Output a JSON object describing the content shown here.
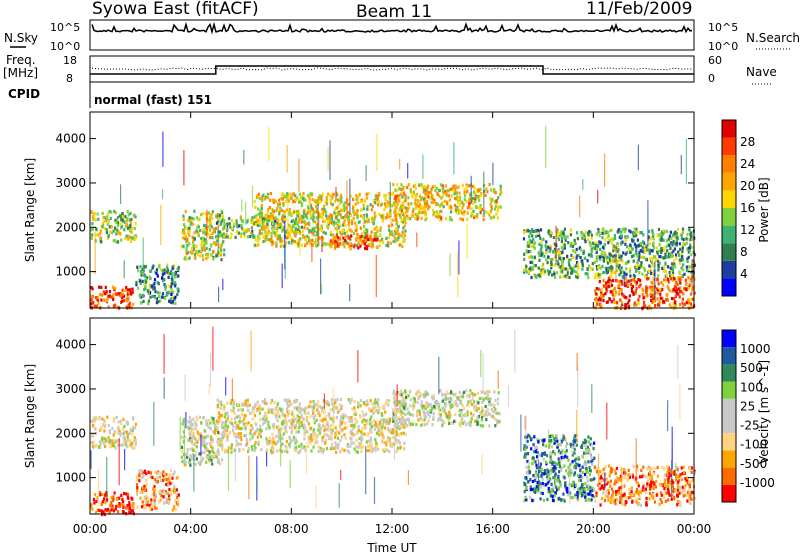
{
  "header": {
    "station": "Syowa East (fitACF)",
    "beam": "Beam 11",
    "date": "11/Feb/2009"
  },
  "strip_labels": {
    "nsky": "N.Sky",
    "nsky_top": "10^5",
    "nsky_bottom": "10^0",
    "nsearch": "N.Search",
    "nsearch_top": "10^5",
    "nsearch_bottom": "10^0",
    "freq": "Freq.",
    "freq_unit": "[MHz]",
    "freq_top": "18",
    "freq_bottom": "8",
    "nave": "Nave",
    "nave_top": "60",
    "nave_bottom": "0",
    "cpid": "CPID",
    "cpid_value": "normal (fast) 151"
  },
  "colors": {
    "power_scale": [
      "#0000ff",
      "#1e3fa0",
      "#2f7f4f",
      "#3cb371",
      "#7fd23c",
      "#ffd700",
      "#ffa500",
      "#ff7f00",
      "#ff3b00",
      "#e00000"
    ],
    "velocity_scale": [
      "#ff0000",
      "#ff6a00",
      "#ffa500",
      "#ffd27f",
      "#c8c8c8",
      "#c8c8c8",
      "#7fd23c",
      "#2e8b57",
      "#1e5aa0",
      "#0000ff"
    ]
  },
  "chart_data": [
    {
      "type": "heatmap",
      "name_hint": "power",
      "ylabel": "Slant Range [km]",
      "yticks": [
        "1000",
        "2000",
        "3000",
        "4000"
      ],
      "xticks": [
        "00:00",
        "04:00",
        "08:00",
        "12:00",
        "16:00",
        "20:00",
        "00:00"
      ],
      "ylim": [
        180,
        4600
      ],
      "xlim": [
        0,
        24
      ],
      "colorbar": {
        "label": "Power [dB]",
        "ticks": [
          "4",
          "8",
          "12",
          "16",
          "20",
          "24",
          "28"
        ]
      },
      "regions": [
        {
          "t0": 0.0,
          "t1": 1.7,
          "r0": 200,
          "r1": 700,
          "level": 0.85
        },
        {
          "t0": 0.0,
          "t1": 1.8,
          "r0": 1700,
          "r1": 2400,
          "level": 0.45
        },
        {
          "t0": 1.8,
          "t1": 3.5,
          "r0": 300,
          "r1": 1200,
          "level": 0.3
        },
        {
          "t0": 3.6,
          "t1": 5.3,
          "r0": 1300,
          "r1": 2400,
          "level": 0.5
        },
        {
          "t0": 5.0,
          "t1": 8.5,
          "r0": 1800,
          "r1": 2300,
          "level": 0.4
        },
        {
          "t0": 6.5,
          "t1": 12.5,
          "r0": 1600,
          "r1": 2800,
          "level": 0.55
        },
        {
          "t0": 9.5,
          "t1": 11.5,
          "r0": 1550,
          "r1": 1850,
          "level": 0.85
        },
        {
          "t0": 12.0,
          "t1": 16.3,
          "r0": 2200,
          "r1": 3000,
          "level": 0.6
        },
        {
          "t0": 17.2,
          "t1": 24.0,
          "r0": 900,
          "r1": 2000,
          "level": 0.35
        },
        {
          "t0": 20.0,
          "t1": 24.0,
          "r0": 200,
          "r1": 900,
          "level": 0.8
        }
      ]
    },
    {
      "type": "heatmap",
      "name_hint": "velocity",
      "ylabel": "Slant Range [km]",
      "xlabel": "Time UT",
      "yticks": [
        "1000",
        "2000",
        "3000",
        "4000"
      ],
      "xticks": [
        "00:00",
        "04:00",
        "08:00",
        "12:00",
        "16:00",
        "20:00",
        "00:00"
      ],
      "ylim": [
        180,
        4600
      ],
      "xlim": [
        0,
        24
      ],
      "colorbar": {
        "label": "Velocity [m s^-1]",
        "ticks": [
          "1000",
          "500",
          "100",
          "25",
          "-25",
          "-100",
          "-500",
          "-1000"
        ]
      },
      "regions": [
        {
          "t0": 0.0,
          "t1": 1.7,
          "r0": 200,
          "r1": 700,
          "level": 0.08
        },
        {
          "t0": 0.0,
          "t1": 1.8,
          "r0": 1700,
          "r1": 2400,
          "level": 0.45
        },
        {
          "t0": 1.8,
          "t1": 3.5,
          "r0": 300,
          "r1": 1200,
          "level": 0.25
        },
        {
          "t0": 3.6,
          "t1": 5.3,
          "r0": 1300,
          "r1": 2400,
          "level": 0.5
        },
        {
          "t0": 5.0,
          "t1": 12.5,
          "r0": 1600,
          "r1": 2800,
          "level": 0.45
        },
        {
          "t0": 12.0,
          "t1": 16.3,
          "r0": 2200,
          "r1": 3000,
          "level": 0.5
        },
        {
          "t0": 17.2,
          "t1": 20.0,
          "r0": 500,
          "r1": 2000,
          "level": 0.75
        },
        {
          "t0": 20.0,
          "t1": 24.0,
          "r0": 400,
          "r1": 1300,
          "level": 0.2
        }
      ]
    }
  ]
}
